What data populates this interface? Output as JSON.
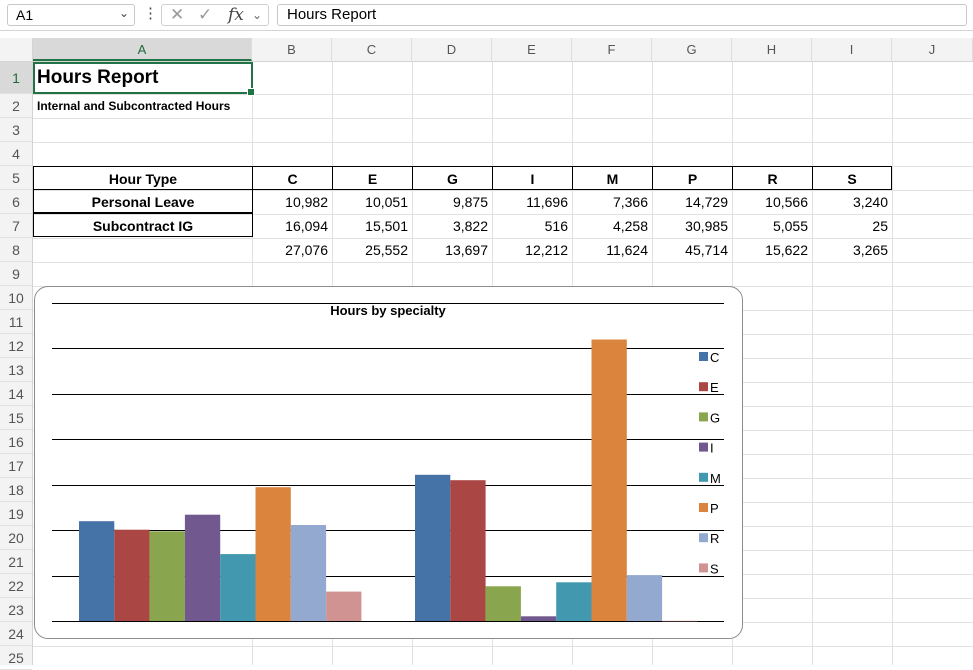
{
  "formula_bar": {
    "name_box": "A1",
    "fx_label": "fx",
    "formula": "Hours Report"
  },
  "columns": [
    "A",
    "B",
    "C",
    "D",
    "E",
    "F",
    "G",
    "H",
    "I",
    "J"
  ],
  "rows": [
    "1",
    "2",
    "3",
    "4",
    "5",
    "6",
    "7",
    "8",
    "9",
    "10",
    "11",
    "12",
    "13",
    "14",
    "15",
    "16",
    "17",
    "18",
    "19",
    "20",
    "21",
    "22",
    "23",
    "24",
    "25"
  ],
  "sheet": {
    "title": "Hours Report",
    "subtitle": "Internal and Subcontracted Hours",
    "header": [
      "Hour Type",
      "C",
      "E",
      "G",
      "I",
      "M",
      "P",
      "R",
      "S"
    ],
    "table": [
      {
        "label": "Personal Leave",
        "values": [
          "10,982",
          "10,051",
          "9,875",
          "11,696",
          "7,366",
          "14,729",
          "10,566",
          "3,240"
        ]
      },
      {
        "label": "Subcontract IG",
        "values": [
          "16,094",
          "15,501",
          "3,822",
          "516",
          "4,258",
          "30,985",
          "5,055",
          "25"
        ]
      }
    ],
    "totals": [
      "27,076",
      "25,552",
      "13,697",
      "12,212",
      "11,624",
      "45,714",
      "15,622",
      "3,265"
    ]
  },
  "chart_data": {
    "type": "bar",
    "title": "Hours by specialty",
    "categories": [
      "Personal Leave",
      "Subcontract IG"
    ],
    "series": [
      {
        "name": "C",
        "values": [
          10982,
          16094
        ],
        "color": "#4572a7"
      },
      {
        "name": "E",
        "values": [
          10051,
          15501
        ],
        "color": "#aa4643"
      },
      {
        "name": "G",
        "values": [
          9875,
          3822
        ],
        "color": "#89a54e"
      },
      {
        "name": "I",
        "values": [
          11696,
          516
        ],
        "color": "#71588f"
      },
      {
        "name": "M",
        "values": [
          7366,
          4258
        ],
        "color": "#4198af"
      },
      {
        "name": "P",
        "values": [
          14729,
          30985
        ],
        "color": "#db843d"
      },
      {
        "name": "R",
        "values": [
          10566,
          5055
        ],
        "color": "#93a9cf"
      },
      {
        "name": "S",
        "values": [
          3240,
          25
        ],
        "color": "#d19392"
      }
    ],
    "ylim": [
      0,
      35000
    ],
    "grid": true,
    "legend": "right"
  }
}
